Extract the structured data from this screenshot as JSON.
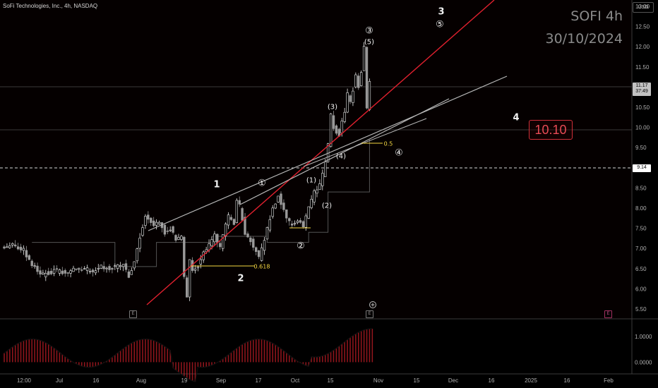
{
  "header": {
    "title": "SoFi Technologies, Inc., 4h, NASDAQ"
  },
  "watermark": {
    "symbol": "SOFI 4h",
    "date": "30/10/2024"
  },
  "currency": "USD",
  "price_labels": {
    "last": "11.17",
    "countdown": "37:49",
    "crosshair": "9.14"
  },
  "target_box": "10.10",
  "colors": {
    "background": "#000000",
    "bull_candle": "#26a69a",
    "bear_candle": "#ef5350",
    "trend_red": "#e0202e",
    "channel_line": "#b8b8b8",
    "fib_yellow": "#f5d742",
    "osc_red": "#d4202a"
  },
  "events": [
    "E",
    "E",
    "E"
  ],
  "chart_data": {
    "type": "line",
    "title": "SoFi Technologies, Inc., 4h, NASDAQ",
    "ylim": [
      5.5,
      13.0
    ],
    "y_ticks": [
      "13.00",
      "12.50",
      "12.00",
      "11.50",
      "11.00",
      "10.50",
      "10.00",
      "9.50",
      "9.00",
      "8.50",
      "8.00",
      "7.50",
      "7.00",
      "6.50",
      "6.00",
      "5.50"
    ],
    "x_ticks": [
      "12:00",
      "Jul",
      "16",
      "Aug",
      "19",
      "Sep",
      "17",
      "Oct",
      "15",
      "Nov",
      "15",
      "Dec",
      "16",
      "2025",
      "16",
      "Feb"
    ],
    "price_path": [
      [
        0,
        7.05
      ],
      [
        4,
        7.1
      ],
      [
        8,
        6.95
      ],
      [
        11,
        6.6
      ],
      [
        15,
        6.35
      ],
      [
        19,
        6.45
      ],
      [
        23,
        6.4
      ],
      [
        28,
        6.5
      ],
      [
        33,
        6.45
      ],
      [
        36,
        6.55
      ],
      [
        40,
        6.5
      ],
      [
        44,
        6.6
      ],
      [
        46,
        6.3
      ],
      [
        48,
        6.7
      ],
      [
        50,
        7.3
      ],
      [
        52,
        7.8
      ],
      [
        55,
        7.6
      ],
      [
        57,
        7.7
      ],
      [
        59,
        7.4
      ],
      [
        61,
        7.5
      ],
      [
        63,
        7.2
      ],
      [
        65,
        7.3
      ],
      [
        66,
        6.3
      ],
      [
        67,
        5.78
      ],
      [
        68,
        6.7
      ],
      [
        69,
        6.4
      ],
      [
        71,
        6.6
      ],
      [
        74,
        7.0
      ],
      [
        77,
        7.3
      ],
      [
        79,
        7.05
      ],
      [
        82,
        7.8
      ],
      [
        84,
        7.6
      ],
      [
        85,
        8.2
      ],
      [
        86,
        8.05
      ],
      [
        88,
        7.4
      ],
      [
        90,
        7.2
      ],
      [
        92,
        6.9
      ],
      [
        93,
        6.75
      ],
      [
        95,
        7.2
      ],
      [
        98,
        8.0
      ],
      [
        100,
        8.3
      ],
      [
        101,
        8.1
      ],
      [
        103,
        7.7
      ],
      [
        105,
        7.6
      ],
      [
        107,
        7.7
      ],
      [
        109,
        7.55
      ],
      [
        111,
        8.0
      ],
      [
        113,
        8.4
      ],
      [
        115,
        8.55
      ],
      [
        117,
        9.1
      ],
      [
        118,
        9.55
      ],
      [
        119,
        10.3
      ],
      [
        120,
        10.0
      ],
      [
        122,
        9.8
      ],
      [
        124,
        10.4
      ],
      [
        125,
        10.8
      ],
      [
        126,
        10.6
      ],
      [
        128,
        11.3
      ],
      [
        129,
        11.0
      ],
      [
        130,
        11.4
      ],
      [
        131,
        12.0
      ],
      [
        132,
        10.5
      ],
      [
        133,
        11.17
      ]
    ],
    "annotations": [
      {
        "text": "1",
        "style": "big"
      },
      {
        "text": "2",
        "style": "big"
      },
      {
        "text": "3",
        "style": "big"
      },
      {
        "text": "4",
        "style": "big"
      },
      {
        "text": "①",
        "style": "circ"
      },
      {
        "text": "②",
        "style": "circ"
      },
      {
        "text": "③",
        "style": "circ"
      },
      {
        "text": "④",
        "style": "circ"
      },
      {
        "text": "⑤",
        "style": "circ"
      },
      {
        "text": "(1)",
        "style": "paren"
      },
      {
        "text": "(2)",
        "style": "paren"
      },
      {
        "text": "(3)",
        "style": "paren"
      },
      {
        "text": "(4)",
        "style": "paren"
      },
      {
        "text": "(5)",
        "style": "paren"
      },
      {
        "text": "0.618",
        "style": "fib"
      },
      {
        "text": "0.5",
        "style": "fib"
      }
    ],
    "grid": false,
    "oscillator": {
      "ylim": [
        -0.4,
        1.6
      ],
      "y_ticks": [
        "1.0000",
        "0.0000"
      ]
    }
  }
}
